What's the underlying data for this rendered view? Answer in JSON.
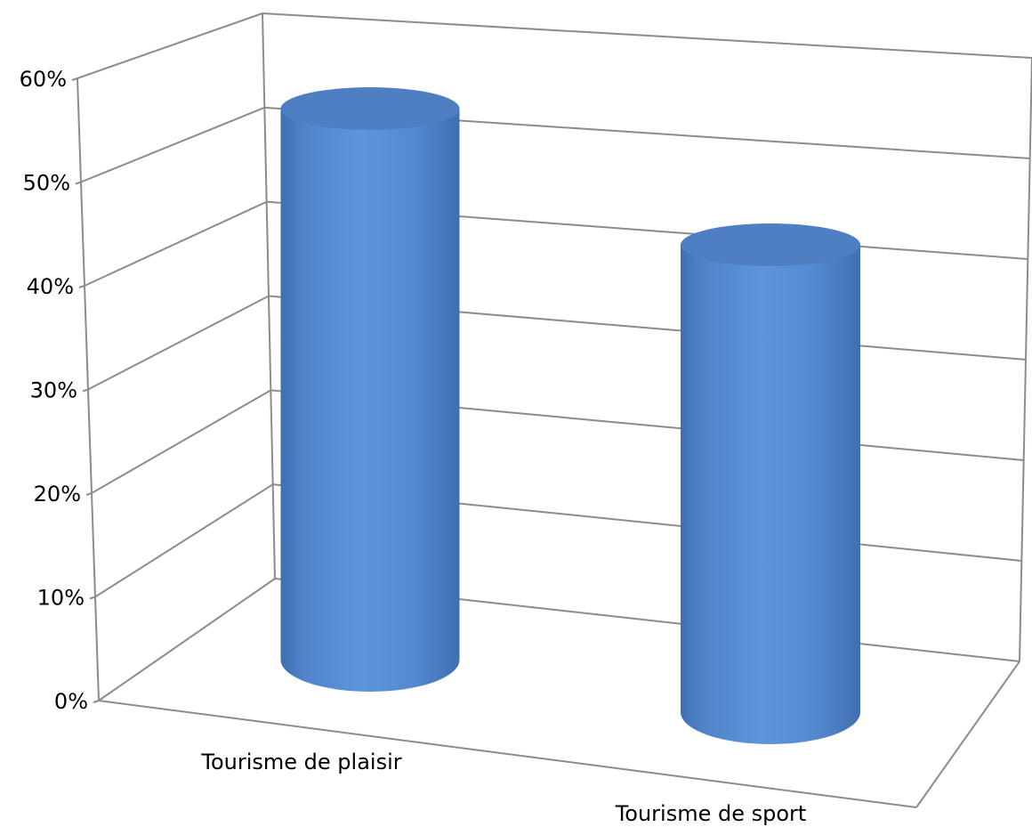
{
  "chart_data": {
    "type": "bar",
    "style": "3d-cylinder",
    "categories": [
      "Tourisme de plaisir",
      "Tourisme de sport"
    ],
    "values": [
      0.56,
      0.44
    ],
    "ylim": [
      0,
      0.6
    ],
    "yticks": [
      0,
      0.1,
      0.2,
      0.3,
      0.4,
      0.5,
      0.6
    ],
    "ytick_labels": [
      "0%",
      "10%",
      "20%",
      "30%",
      "40%",
      "50%",
      "60%"
    ],
    "grid": true,
    "legend": "none",
    "colors": {
      "bar": "#5b8fd4",
      "bar_top": "#4f7fc3",
      "bar_edge": "#3d6aa8",
      "grid": "#8c8c8c"
    }
  }
}
